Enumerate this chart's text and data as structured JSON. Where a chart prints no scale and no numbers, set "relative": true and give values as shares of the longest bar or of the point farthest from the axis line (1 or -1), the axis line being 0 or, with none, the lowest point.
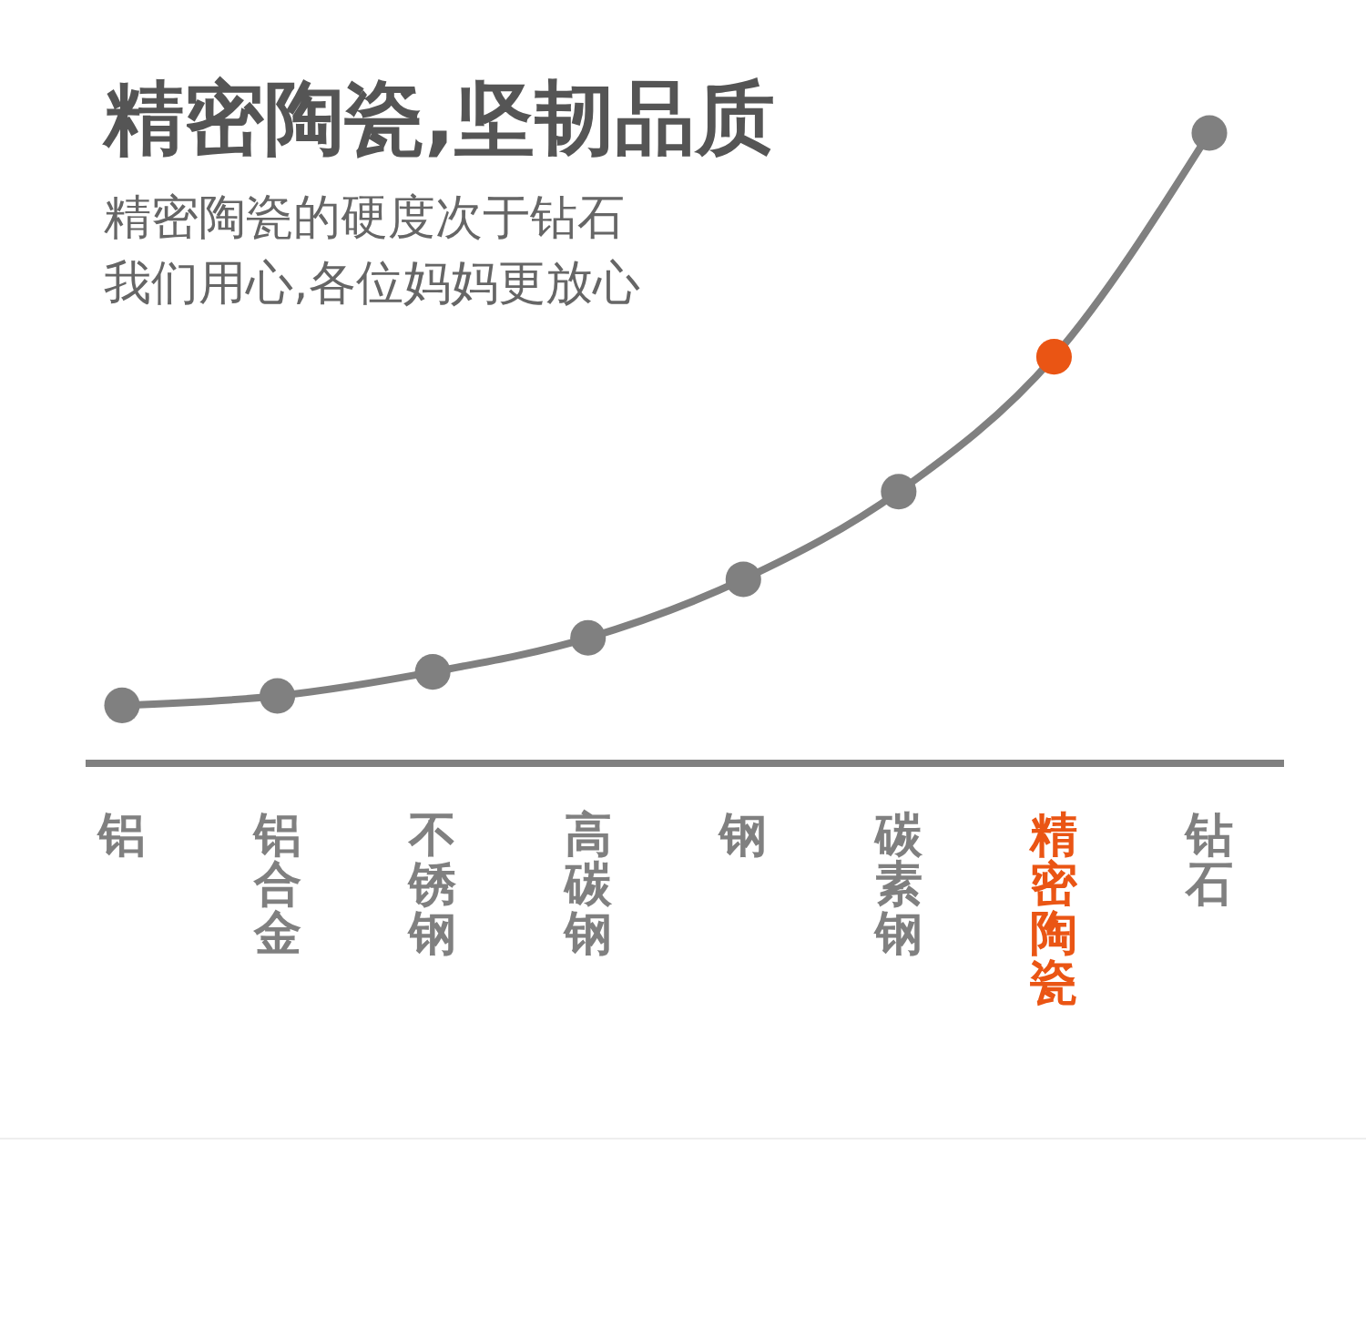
{
  "chart_data": {
    "type": "line",
    "title": "精密陶瓷,坚韧品质",
    "subtitle": "精密陶瓷的硬度次于钻石",
    "annotations": [
      "我们用心,各位妈妈更放心"
    ],
    "relative": true,
    "categories": [
      "铝",
      "铝合金",
      "不锈钢",
      "高碳钢",
      "钢",
      "碳素钢",
      "精密陶瓷",
      "钻石"
    ],
    "series": [
      {
        "color": "#808080",
        "colors": [
          "#808080",
          "#808080",
          "#808080",
          "#808080",
          "#808080",
          "#808080",
          "#ea5514",
          "#808080"
        ],
        "values": [
          0.092,
          0.107,
          0.145,
          0.199,
          0.292,
          0.431,
          0.645,
          1
        ]
      }
    ],
    "marker": "circle",
    "line_style": "solid"
  }
}
